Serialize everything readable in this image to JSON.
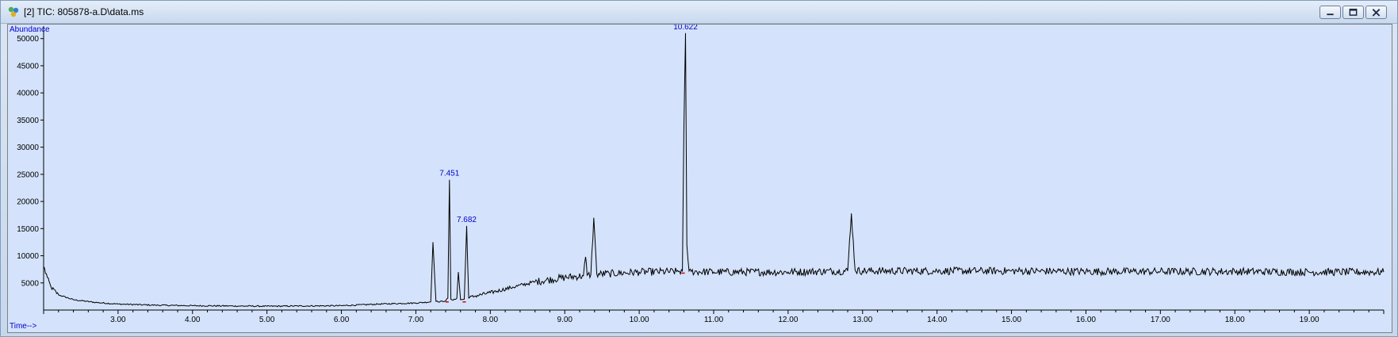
{
  "window": {
    "title": "[2] TIC: 805878-a.D\\data.ms",
    "buttons": [
      "minimize",
      "restore",
      "close"
    ]
  },
  "colors": {
    "plot_background": "#d4e3fb",
    "axis": "#000000",
    "trace": "#000000",
    "axis_title": "#0000cc",
    "peak_label": "#0000cc",
    "baseline_marker": "#cc0000"
  },
  "chart_data": {
    "type": "line",
    "xlabel": "Time-->",
    "ylabel": "Abundance",
    "xlim": [
      2.0,
      20.0
    ],
    "ylim": [
      0,
      52000
    ],
    "x_ticks": [
      "3.00",
      "4.00",
      "5.00",
      "6.00",
      "7.00",
      "8.00",
      "9.00",
      "10.00",
      "11.00",
      "12.00",
      "13.00",
      "14.00",
      "15.00",
      "16.00",
      "17.00",
      "18.00",
      "19.00"
    ],
    "y_ticks": [
      "5000",
      "10000",
      "15000",
      "20000",
      "25000",
      "30000",
      "35000",
      "40000",
      "45000",
      "50000"
    ],
    "grid": false,
    "legend": "none",
    "series": [
      {
        "values_note_free": true,
        "x": [
          2.0,
          2.05,
          2.1,
          2.2,
          2.4,
          2.7,
          3.0,
          3.5,
          4.0,
          5.0,
          6.0,
          6.5,
          7.0,
          7.2,
          7.23,
          7.27,
          7.3,
          7.4,
          7.43,
          7.451,
          7.47,
          7.5,
          7.55,
          7.57,
          7.6,
          7.65,
          7.682,
          7.71,
          7.8,
          8.0,
          8.3,
          8.6,
          9.0,
          9.25,
          9.28,
          9.3,
          9.35,
          9.39,
          9.43,
          9.6,
          10.0,
          10.5,
          10.58,
          10.6,
          10.622,
          10.64,
          10.67,
          10.7,
          11.0,
          12.0,
          12.8,
          12.85,
          12.9,
          13.0,
          14.0,
          15.0,
          16.0,
          17.0,
          18.0,
          19.0,
          20.0
        ],
        "y": [
          8000,
          6000,
          4200,
          2800,
          1900,
          1400,
          1100,
          900,
          800,
          700,
          800,
          1100,
          1300,
          1500,
          12500,
          1600,
          1500,
          1700,
          2200,
          24000,
          2000,
          1800,
          2200,
          7000,
          1900,
          2000,
          15500,
          2200,
          2600,
          3200,
          4200,
          5200,
          6000,
          6300,
          9800,
          6400,
          6500,
          17000,
          6600,
          6700,
          7000,
          7100,
          7200,
          33000,
          51000,
          12000,
          7200,
          7100,
          7000,
          7000,
          7200,
          17800,
          7300,
          7200,
          7200,
          7200,
          7100,
          7100,
          7100,
          7000,
          7000
        ]
      }
    ],
    "peak_labels": [
      {
        "x": 7.451,
        "y": 24000,
        "text": "7.451"
      },
      {
        "x": 7.682,
        "y": 15500,
        "text": "7.682"
      },
      {
        "x": 10.622,
        "y": 51000,
        "text": "10.622"
      }
    ]
  }
}
